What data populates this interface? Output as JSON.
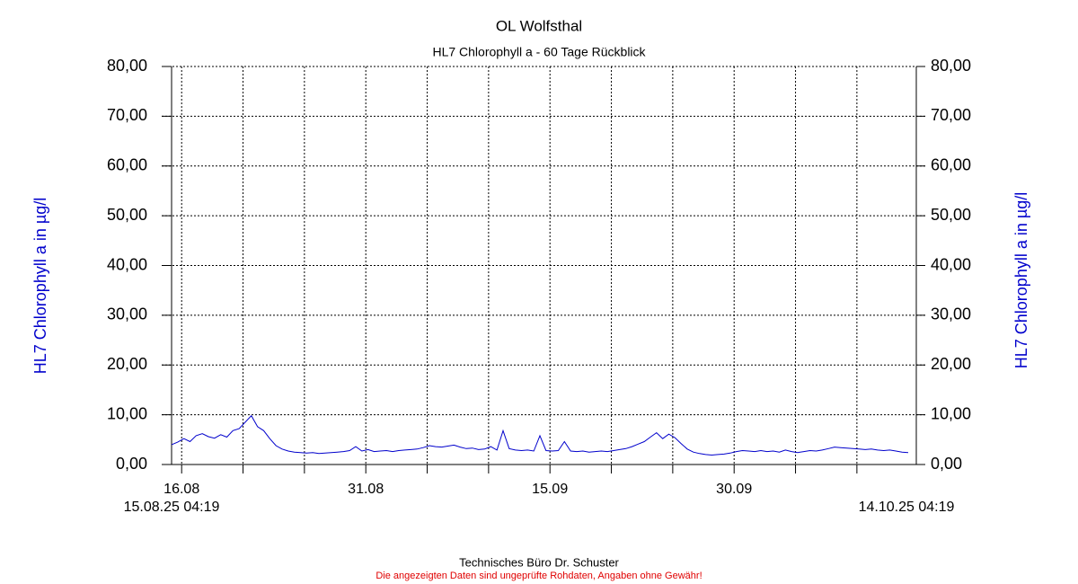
{
  "chart_data": {
    "type": "line",
    "title": "OL Wolfsthal",
    "subtitle": "HL7 Chlorophyll a - 60 Tage Rückblick",
    "y_label": "HL7 Chlorophyll a in µg/l",
    "y2_label": "HL7 Chlorophyll a in µg/l",
    "x_start_label": "15.08.25 04:19",
    "x_end_label": "14.10.25 04:19",
    "xlim": [
      0,
      60
    ],
    "xticks": [
      {
        "value": 0.82,
        "label": "16.08"
      },
      {
        "value": 15.82,
        "label": "31.08"
      },
      {
        "value": 30.82,
        "label": "15.09"
      },
      {
        "value": 45.82,
        "label": "30.09"
      }
    ],
    "xgrid": [
      0.82,
      5.82,
      10.82,
      15.82,
      20.82,
      25.82,
      30.82,
      35.82,
      40.82,
      45.82,
      50.82,
      55.82
    ],
    "ylim": [
      0,
      80
    ],
    "yticks": [
      {
        "value": 0,
        "label": "0,00"
      },
      {
        "value": 10,
        "label": "10,00"
      },
      {
        "value": 20,
        "label": "20,00"
      },
      {
        "value": 30,
        "label": "30,00"
      },
      {
        "value": 40,
        "label": "40,00"
      },
      {
        "value": 50,
        "label": "50,00"
      },
      {
        "value": 60,
        "label": "60,00"
      },
      {
        "value": 70,
        "label": "70,00"
      },
      {
        "value": 80,
        "label": "80,00"
      }
    ],
    "grid": true,
    "x": [
      0,
      0.5,
      1,
      1.5,
      2,
      2.5,
      3,
      3.5,
      4,
      4.5,
      5,
      5.5,
      6,
      6.5,
      7,
      7.5,
      8,
      8.5,
      9,
      9.5,
      10,
      10.5,
      11,
      11.5,
      12,
      12.5,
      13,
      13.5,
      14,
      14.5,
      15,
      15.5,
      16,
      16.5,
      17,
      17.5,
      18,
      18.5,
      19,
      19.5,
      20,
      20.5,
      21,
      21.5,
      22,
      22.5,
      23,
      23.5,
      24,
      24.5,
      25,
      25.5,
      26,
      26.5,
      27,
      27.5,
      28,
      28.5,
      29,
      29.5,
      30,
      30.5,
      31,
      31.5,
      32,
      32.5,
      33,
      33.5,
      34,
      34.5,
      35,
      35.5,
      36,
      36.5,
      37,
      37.5,
      38,
      38.5,
      39,
      39.5,
      40,
      40.5,
      41,
      41.5,
      42,
      42.5,
      43,
      43.5,
      44,
      44.5,
      45,
      45.5,
      46,
      46.5,
      47,
      47.5,
      48,
      48.5,
      49,
      49.5,
      50,
      50.5,
      51,
      51.5,
      52,
      52.5,
      53,
      53.5,
      54,
      54.5,
      55,
      55.5,
      56,
      56.5,
      57,
      57.5,
      58,
      58.5,
      59,
      59.5,
      60
    ],
    "series": [
      {
        "name": "HL7 Chlorophyll a",
        "color": "#0000cc",
        "values": [
          4.0,
          4.5,
          5.2,
          4.6,
          5.8,
          6.2,
          5.6,
          5.3,
          6.0,
          5.5,
          6.8,
          7.2,
          8.5,
          9.8,
          7.6,
          6.8,
          5.2,
          3.8,
          3.1,
          2.7,
          2.5,
          2.4,
          2.3,
          2.4,
          2.2,
          2.3,
          2.4,
          2.5,
          2.6,
          2.8,
          3.6,
          2.7,
          3.0,
          2.6,
          2.7,
          2.8,
          2.6,
          2.8,
          2.9,
          3.0,
          3.1,
          3.4,
          3.8,
          3.6,
          3.5,
          3.7,
          3.9,
          3.5,
          3.2,
          3.3,
          3.0,
          3.1,
          3.6,
          2.9,
          6.8,
          3.2,
          2.9,
          2.8,
          2.9,
          2.7,
          5.8,
          2.8,
          2.7,
          2.8,
          4.6,
          2.7,
          2.6,
          2.7,
          2.5,
          2.6,
          2.7,
          2.6,
          2.8,
          3.0,
          3.2,
          3.6,
          4.1,
          4.6,
          5.5,
          6.4,
          5.2,
          6.1,
          5.4,
          4.2,
          3.1,
          2.5,
          2.2,
          2.0,
          1.9,
          2.0,
          2.1,
          2.3,
          2.6,
          2.8,
          2.7,
          2.6,
          2.8,
          2.6,
          2.7,
          2.5,
          2.9,
          2.6,
          2.4,
          2.6,
          2.8,
          2.7,
          2.9,
          3.2,
          3.5,
          3.4,
          3.3,
          3.2,
          3.1,
          3.0,
          3.1,
          2.9,
          2.8,
          2.9,
          2.7,
          2.5,
          2.4
        ]
      }
    ],
    "footer": "Technisches Büro Dr. Schuster",
    "disclaimer": "Die angezeigten Daten sind ungeprüfte Rohdaten, Angaben ohne Gewähr!"
  }
}
